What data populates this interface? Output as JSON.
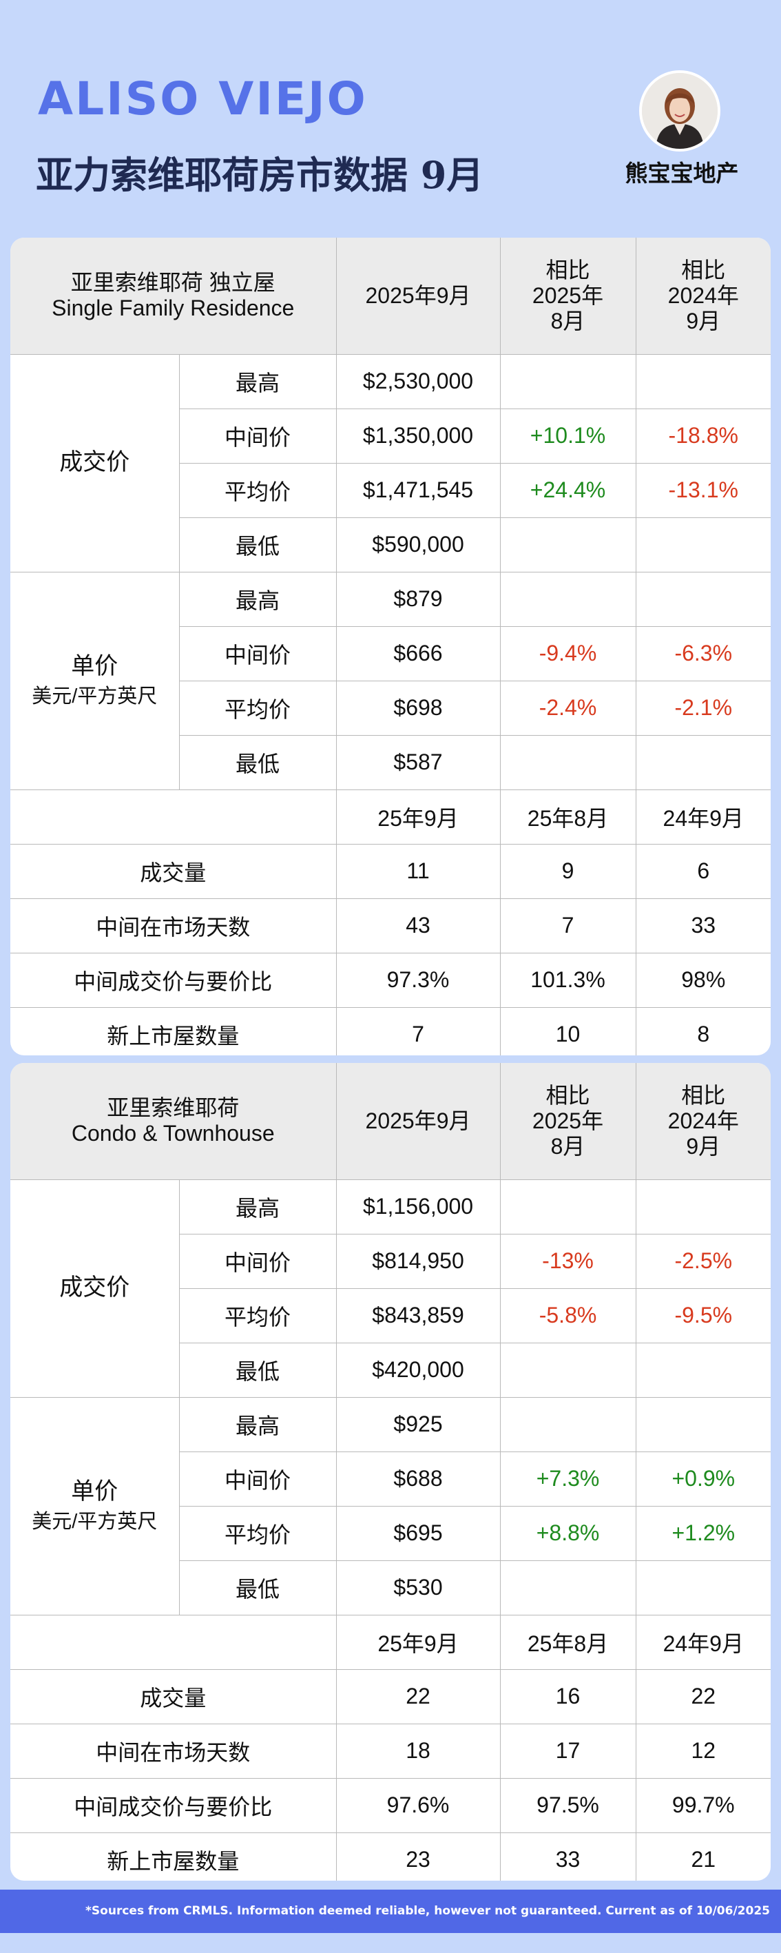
{
  "header": {
    "city": "ALISO VIEJO",
    "subtitle": "亚力索维耶荷房市数据 9月",
    "brand": "熊宝宝地产"
  },
  "colors": {
    "accent": "#5672e8",
    "up": "#1e8b1e",
    "down": "#d83a1e",
    "footer": "#5068e6"
  },
  "sfr": {
    "title_line1": "亚里索维耶荷  独立屋",
    "title_line2": "Single Family Residence",
    "col_month": "2025年9月",
    "col_vs1": "相比\n2025年\n8月",
    "col_vs2": "相比\n2024年\n9月",
    "price_label": "成交价",
    "price_rows": [
      {
        "label": "最高",
        "value": "$2,530,000",
        "vs1": "",
        "vs2": ""
      },
      {
        "label": "中间价",
        "value": "$1,350,000",
        "vs1": "+10.1%",
        "vs2": "-18.8%"
      },
      {
        "label": "平均价",
        "value": "$1,471,545",
        "vs1": "+24.4%",
        "vs2": "-13.1%"
      },
      {
        "label": "最低",
        "value": "$590,000",
        "vs1": "",
        "vs2": ""
      }
    ],
    "unit_label": "单价",
    "unit_sublabel": "美元/平方英尺",
    "unit_rows": [
      {
        "label": "最高",
        "value": "$879",
        "vs1": "",
        "vs2": ""
      },
      {
        "label": "中间价",
        "value": "$666",
        "vs1": "-9.4%",
        "vs2": "-6.3%"
      },
      {
        "label": "平均价",
        "value": "$698",
        "vs1": "-2.4%",
        "vs2": "-2.1%"
      },
      {
        "label": "最低",
        "value": "$587",
        "vs1": "",
        "vs2": ""
      }
    ],
    "stats_cols": [
      "25年9月",
      "25年8月",
      "24年9月"
    ],
    "stats_rows": [
      {
        "label": "成交量",
        "v1": "11",
        "v2": "9",
        "v3": "6"
      },
      {
        "label": "中间在市场天数",
        "v1": "43",
        "v2": "7",
        "v3": "33"
      },
      {
        "label": "中间成交价与要价比",
        "v1": "97.3%",
        "v2": "101.3%",
        "v3": "98%"
      },
      {
        "label": "新上市屋数量",
        "v1": "7",
        "v2": "10",
        "v3": "8"
      }
    ]
  },
  "condo": {
    "title_line1": "亚里索维耶荷",
    "title_line2": "Condo & Townhouse",
    "col_month": "2025年9月",
    "col_vs1": "相比\n2025年\n8月",
    "col_vs2": "相比\n2024年\n9月",
    "price_label": "成交价",
    "price_rows": [
      {
        "label": "最高",
        "value": "$1,156,000",
        "vs1": "",
        "vs2": ""
      },
      {
        "label": "中间价",
        "value": "$814,950",
        "vs1": "-13%",
        "vs2": "-2.5%"
      },
      {
        "label": "平均价",
        "value": "$843,859",
        "vs1": "-5.8%",
        "vs2": "-9.5%"
      },
      {
        "label": "最低",
        "value": "$420,000",
        "vs1": "",
        "vs2": ""
      }
    ],
    "unit_label": "单价",
    "unit_sublabel": "美元/平方英尺",
    "unit_rows": [
      {
        "label": "最高",
        "value": "$925",
        "vs1": "",
        "vs2": ""
      },
      {
        "label": "中间价",
        "value": "$688",
        "vs1": "+7.3%",
        "vs2": "+0.9%"
      },
      {
        "label": "平均价",
        "value": "$695",
        "vs1": "+8.8%",
        "vs2": "+1.2%"
      },
      {
        "label": "最低",
        "value": "$530",
        "vs1": "",
        "vs2": ""
      }
    ],
    "stats_cols": [
      "25年9月",
      "25年8月",
      "24年9月"
    ],
    "stats_rows": [
      {
        "label": "成交量",
        "v1": "22",
        "v2": "16",
        "v3": "22"
      },
      {
        "label": "中间在市场天数",
        "v1": "18",
        "v2": "17",
        "v3": "12"
      },
      {
        "label": "中间成交价与要价比",
        "v1": "97.6%",
        "v2": "97.5%",
        "v3": "99.7%"
      },
      {
        "label": "新上市屋数量",
        "v1": "23",
        "v2": "33",
        "v3": "21"
      }
    ]
  },
  "footer": {
    "text": "*Sources from CRMLS. Information deemed reliable, however not guaranteed. Current as of 10/06/2025"
  }
}
